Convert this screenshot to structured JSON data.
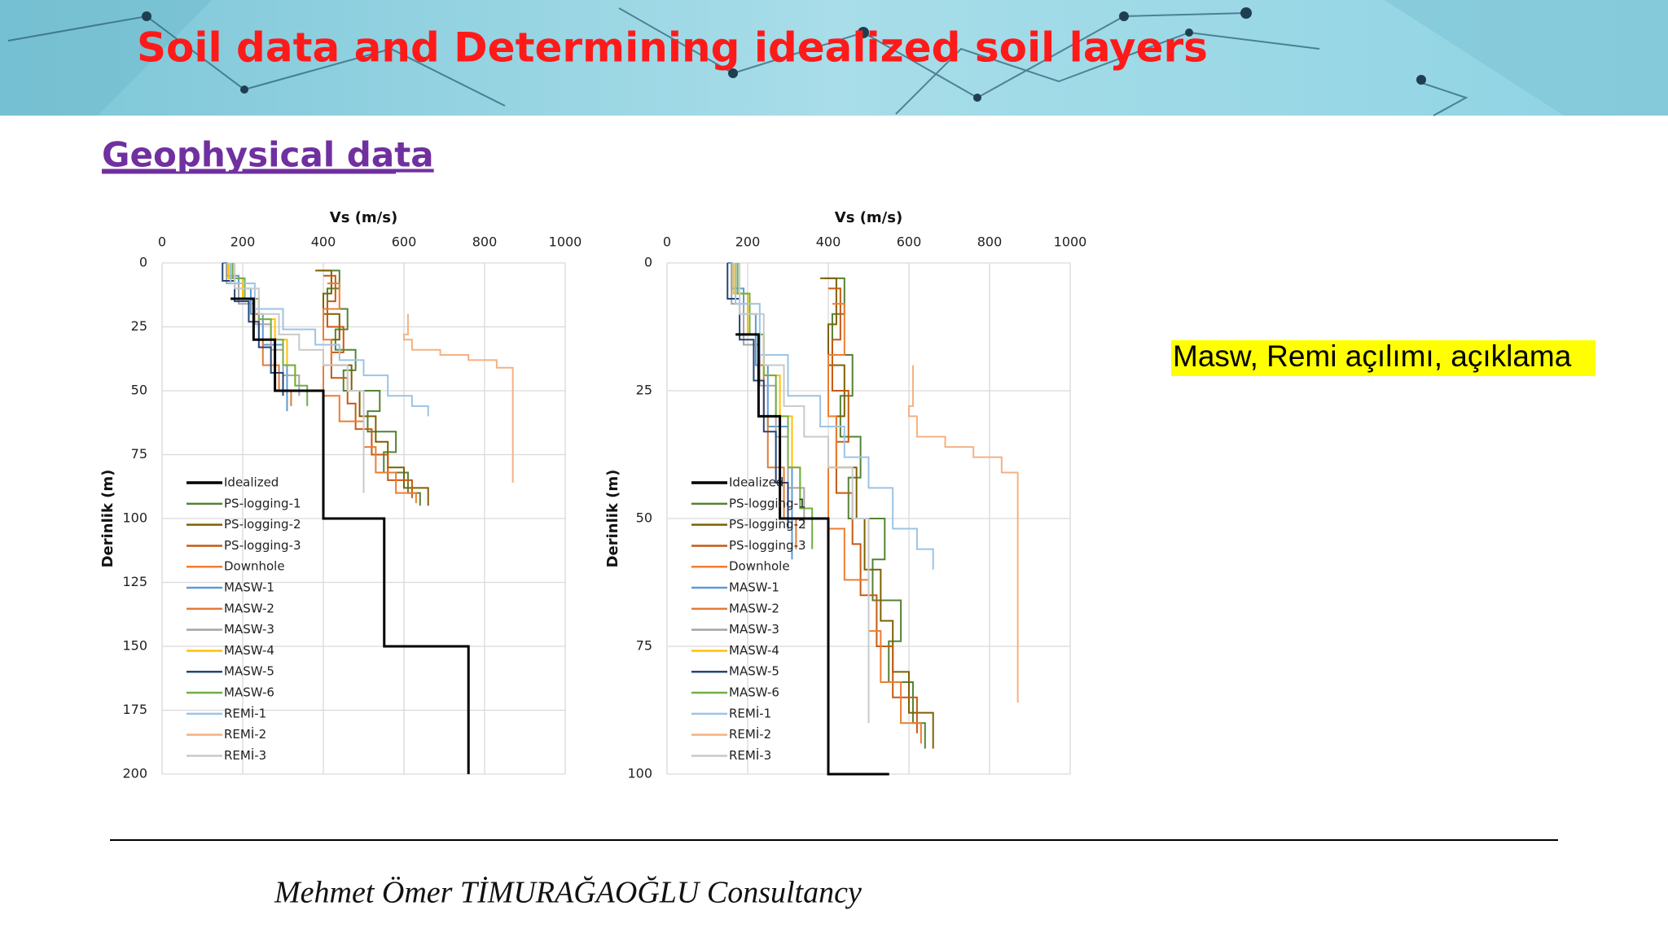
{
  "header": {
    "title": "Soil data and Determining idealized soil layers"
  },
  "section_title": "Geophysical data",
  "note": "Masw, Remi açılımı, açıklama",
  "footer": "Mehmet Ömer TİMURAĞAOĞLU Consultancy",
  "chart_data": [
    {
      "type": "line",
      "xlabel": "Vs (m/s)",
      "ylabel": "Derinlik (m)",
      "xlim": [
        0,
        1000
      ],
      "xticks": [
        0,
        200,
        400,
        600,
        800,
        1000
      ],
      "ylim": [
        0,
        200
      ],
      "yticks": [
        0,
        25,
        50,
        75,
        100,
        125,
        150,
        175,
        200
      ],
      "y_inverted": true,
      "grid": true,
      "legend": "lower-left",
      "series": [
        {
          "name": "Idealized",
          "color": "#000000",
          "width": 3,
          "x": [
            170,
            227,
            227,
            280,
            280,
            400,
            400,
            551,
            551,
            760,
            760
          ],
          "y": [
            14,
            14,
            30,
            30,
            50,
            50,
            100,
            100,
            150,
            150,
            200
          ]
        },
        {
          "name": "PS-logging-1",
          "color": "#548235",
          "width": 2,
          "x": [
            390,
            440,
            440,
            410,
            410,
            460,
            460,
            430,
            430,
            480,
            480,
            450,
            450,
            540,
            540,
            510,
            510,
            580,
            580,
            550,
            550,
            610,
            610,
            640,
            640
          ],
          "y": [
            3,
            3,
            10,
            10,
            18,
            18,
            26,
            26,
            34,
            34,
            42,
            42,
            50,
            50,
            58,
            58,
            66,
            66,
            74,
            74,
            82,
            82,
            90,
            90,
            95
          ]
        },
        {
          "name": "PS-logging-2",
          "color": "#7f6000",
          "width": 2,
          "x": [
            380,
            420,
            420,
            400,
            400,
            440,
            440,
            420,
            420,
            470,
            470,
            490,
            490,
            530,
            530,
            560,
            560,
            600,
            600,
            660,
            660
          ],
          "y": [
            3,
            3,
            12,
            12,
            20,
            20,
            30,
            30,
            40,
            40,
            50,
            50,
            60,
            60,
            70,
            70,
            80,
            80,
            88,
            88,
            95
          ]
        },
        {
          "name": "PS-logging-3",
          "color": "#c55a11",
          "width": 2,
          "x": [
            400,
            430,
            430,
            410,
            410,
            450,
            450,
            420,
            420,
            460,
            460,
            480,
            480,
            520,
            520,
            560,
            560,
            620,
            620
          ],
          "y": [
            5,
            5,
            15,
            15,
            25,
            25,
            35,
            35,
            45,
            45,
            55,
            55,
            65,
            65,
            75,
            75,
            85,
            85,
            92
          ]
        },
        {
          "name": "Downhole",
          "color": "#ed7d31",
          "width": 2,
          "x": [
            410,
            440,
            440,
            400,
            400,
            420,
            420,
            400,
            400,
            440,
            440,
            500,
            500,
            530,
            530,
            580,
            580,
            630,
            630
          ],
          "y": [
            8,
            8,
            18,
            18,
            30,
            30,
            40,
            40,
            52,
            52,
            62,
            62,
            72,
            72,
            82,
            82,
            90,
            90,
            94
          ]
        },
        {
          "name": "MASW-1",
          "color": "#5b9bd5",
          "width": 2,
          "x": [
            150,
            160,
            160,
            190,
            190,
            220,
            220,
            250,
            250,
            300,
            300,
            310,
            310
          ],
          "y": [
            0,
            0,
            5,
            5,
            10,
            10,
            20,
            20,
            32,
            32,
            40,
            40,
            58
          ]
        },
        {
          "name": "MASW-2",
          "color": "#e07b39",
          "width": 2,
          "x": [
            170,
            170,
            200,
            200,
            230,
            230,
            240,
            240,
            250,
            250,
            290,
            290,
            320,
            320
          ],
          "y": [
            0,
            6,
            6,
            14,
            14,
            20,
            20,
            30,
            30,
            40,
            40,
            50,
            50,
            56
          ]
        },
        {
          "name": "MASW-3",
          "color": "#a5a5a5",
          "width": 2,
          "x": [
            160,
            160,
            190,
            190,
            230,
            230,
            270,
            270,
            300,
            300,
            340,
            340
          ],
          "y": [
            0,
            8,
            8,
            16,
            16,
            24,
            24,
            34,
            34,
            44,
            44,
            52
          ]
        },
        {
          "name": "MASW-4",
          "color": "#ffc000",
          "width": 2,
          "x": [
            165,
            165,
            200,
            200,
            240,
            240,
            280,
            280,
            310,
            310,
            330,
            330
          ],
          "y": [
            0,
            6,
            6,
            14,
            14,
            22,
            22,
            30,
            30,
            40,
            40,
            48
          ]
        },
        {
          "name": "MASW-5",
          "color": "#264478",
          "width": 2,
          "x": [
            150,
            150,
            180,
            180,
            215,
            215,
            240,
            240,
            270,
            270,
            300,
            300
          ],
          "y": [
            0,
            7,
            7,
            15,
            15,
            23,
            23,
            33,
            33,
            43,
            43,
            52
          ]
        },
        {
          "name": "MASW-6",
          "color": "#70ad47",
          "width": 2,
          "x": [
            175,
            175,
            205,
            205,
            240,
            240,
            270,
            270,
            300,
            300,
            330,
            330,
            360,
            360
          ],
          "y": [
            0,
            6,
            6,
            14,
            14,
            22,
            22,
            30,
            30,
            40,
            40,
            48,
            48,
            56
          ]
        },
        {
          "name": "REMİ-1",
          "color": "#9dc3e6",
          "width": 2,
          "x": [
            170,
            170,
            230,
            230,
            300,
            300,
            380,
            380,
            440,
            440,
            500,
            500,
            560,
            560,
            620,
            620,
            660,
            660
          ],
          "y": [
            0,
            8,
            8,
            18,
            18,
            26,
            26,
            32,
            32,
            38,
            38,
            44,
            44,
            52,
            52,
            56,
            56,
            60
          ]
        },
        {
          "name": "REMİ-2",
          "color": "#f4b183",
          "width": 2,
          "x": [
            610,
            610,
            600,
            600,
            620,
            620,
            690,
            690,
            760,
            760,
            830,
            830,
            870,
            870
          ],
          "y": [
            20,
            28,
            28,
            30,
            30,
            34,
            34,
            36,
            36,
            38,
            38,
            41,
            41,
            86
          ]
        },
        {
          "name": "REMİ-3",
          "color": "#c9c9c9",
          "width": 2,
          "x": [
            180,
            180,
            240,
            240,
            290,
            290,
            340,
            340,
            400,
            400,
            460,
            460,
            500,
            500
          ],
          "y": [
            0,
            10,
            10,
            20,
            20,
            28,
            28,
            34,
            34,
            40,
            40,
            50,
            50,
            90
          ]
        }
      ]
    },
    {
      "type": "line",
      "xlabel": "Vs (m/s)",
      "ylabel": "Derinlik (m)",
      "xlim": [
        0,
        1000
      ],
      "xticks": [
        0,
        200,
        400,
        600,
        800,
        1000
      ],
      "ylim": [
        0,
        100
      ],
      "yticks": [
        0,
        25,
        50,
        75,
        100
      ],
      "y_inverted": true,
      "grid": true,
      "legend": "lower-left",
      "series": [
        {
          "name": "Idealized",
          "color": "#000000",
          "width": 3,
          "x": [
            170,
            227,
            227,
            280,
            280,
            400,
            400,
            551
          ],
          "y": [
            14,
            14,
            30,
            30,
            50,
            50,
            100,
            100
          ]
        },
        {
          "name": "PS-logging-1",
          "color": "#548235",
          "width": 2,
          "x": [
            390,
            440,
            440,
            410,
            410,
            460,
            460,
            430,
            430,
            480,
            480,
            450,
            450,
            540,
            540,
            510,
            510,
            580,
            580,
            550,
            550,
            610,
            610,
            640,
            640
          ],
          "y": [
            3,
            3,
            10,
            10,
            18,
            18,
            26,
            26,
            34,
            34,
            42,
            42,
            50,
            50,
            58,
            58,
            66,
            66,
            74,
            74,
            82,
            82,
            90,
            90,
            95
          ]
        },
        {
          "name": "PS-logging-2",
          "color": "#7f6000",
          "width": 2,
          "x": [
            380,
            420,
            420,
            400,
            400,
            440,
            440,
            420,
            420,
            470,
            470,
            490,
            490,
            530,
            530,
            560,
            560,
            600,
            600,
            660,
            660
          ],
          "y": [
            3,
            3,
            12,
            12,
            20,
            20,
            30,
            30,
            40,
            40,
            50,
            50,
            60,
            60,
            70,
            70,
            80,
            80,
            88,
            88,
            95
          ]
        },
        {
          "name": "PS-logging-3",
          "color": "#c55a11",
          "width": 2,
          "x": [
            400,
            430,
            430,
            410,
            410,
            450,
            450,
            420,
            420,
            460,
            460,
            480,
            480,
            520,
            520,
            560,
            560,
            620,
            620
          ],
          "y": [
            5,
            5,
            15,
            15,
            25,
            25,
            35,
            35,
            45,
            45,
            55,
            55,
            65,
            65,
            75,
            75,
            85,
            85,
            92
          ]
        },
        {
          "name": "Downhole",
          "color": "#ed7d31",
          "width": 2,
          "x": [
            410,
            440,
            440,
            400,
            400,
            420,
            420,
            400,
            400,
            440,
            440,
            500,
            500,
            530,
            530,
            580,
            580,
            630,
            630
          ],
          "y": [
            8,
            8,
            18,
            18,
            30,
            30,
            40,
            40,
            52,
            52,
            62,
            62,
            72,
            72,
            82,
            82,
            90,
            90,
            94
          ]
        },
        {
          "name": "MASW-1",
          "color": "#5b9bd5",
          "width": 2,
          "x": [
            150,
            160,
            160,
            190,
            190,
            220,
            220,
            250,
            250,
            300,
            300,
            310,
            310
          ],
          "y": [
            0,
            0,
            5,
            5,
            10,
            10,
            20,
            20,
            32,
            32,
            40,
            40,
            58
          ]
        },
        {
          "name": "MASW-2",
          "color": "#e07b39",
          "width": 2,
          "x": [
            170,
            170,
            200,
            200,
            230,
            230,
            240,
            240,
            250,
            250,
            290,
            290,
            320,
            320
          ],
          "y": [
            0,
            6,
            6,
            14,
            14,
            20,
            20,
            30,
            30,
            40,
            40,
            50,
            50,
            56
          ]
        },
        {
          "name": "MASW-3",
          "color": "#a5a5a5",
          "width": 2,
          "x": [
            160,
            160,
            190,
            190,
            230,
            230,
            270,
            270,
            300,
            300,
            340,
            340
          ],
          "y": [
            0,
            8,
            8,
            16,
            16,
            24,
            24,
            34,
            34,
            44,
            44,
            52
          ]
        },
        {
          "name": "MASW-4",
          "color": "#ffc000",
          "width": 2,
          "x": [
            165,
            165,
            200,
            200,
            240,
            240,
            280,
            280,
            310,
            310,
            330,
            330
          ],
          "y": [
            0,
            6,
            6,
            14,
            14,
            22,
            22,
            30,
            30,
            40,
            40,
            48
          ]
        },
        {
          "name": "MASW-5",
          "color": "#264478",
          "width": 2,
          "x": [
            150,
            150,
            180,
            180,
            215,
            215,
            240,
            240,
            270,
            270,
            300,
            300
          ],
          "y": [
            0,
            7,
            7,
            15,
            15,
            23,
            23,
            33,
            33,
            43,
            43,
            52
          ]
        },
        {
          "name": "MASW-6",
          "color": "#70ad47",
          "width": 2,
          "x": [
            175,
            175,
            205,
            205,
            240,
            240,
            270,
            270,
            300,
            300,
            330,
            330,
            360,
            360
          ],
          "y": [
            0,
            6,
            6,
            14,
            14,
            22,
            22,
            30,
            30,
            40,
            40,
            48,
            48,
            56
          ]
        },
        {
          "name": "REMİ-1",
          "color": "#9dc3e6",
          "width": 2,
          "x": [
            170,
            170,
            230,
            230,
            300,
            300,
            380,
            380,
            440,
            440,
            500,
            500,
            560,
            560,
            620,
            620,
            660,
            660
          ],
          "y": [
            0,
            8,
            8,
            18,
            18,
            26,
            26,
            32,
            32,
            38,
            38,
            44,
            44,
            52,
            52,
            56,
            56,
            60
          ]
        },
        {
          "name": "REMİ-2",
          "color": "#f4b183",
          "width": 2,
          "x": [
            610,
            610,
            600,
            600,
            620,
            620,
            690,
            690,
            760,
            760,
            830,
            830,
            870,
            870
          ],
          "y": [
            20,
            28,
            28,
            30,
            30,
            34,
            34,
            36,
            36,
            38,
            38,
            41,
            41,
            86
          ]
        },
        {
          "name": "REMİ-3",
          "color": "#c9c9c9",
          "width": 2,
          "x": [
            180,
            180,
            240,
            240,
            290,
            290,
            340,
            340,
            400,
            400,
            460,
            460,
            500,
            500
          ],
          "y": [
            0,
            10,
            10,
            20,
            20,
            28,
            28,
            34,
            34,
            40,
            40,
            50,
            50,
            90
          ]
        }
      ]
    }
  ]
}
